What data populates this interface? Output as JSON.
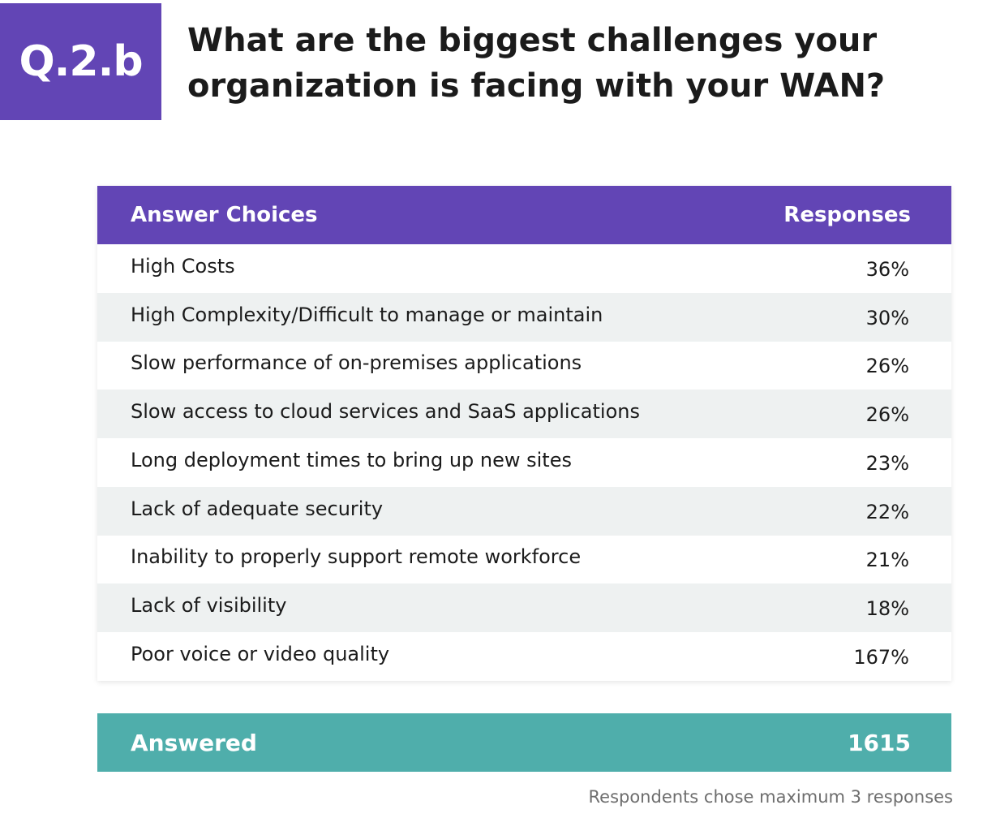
{
  "badge": "Q.2.b",
  "title": "What are the biggest challenges your organization is facing with your WAN?",
  "table": {
    "header": {
      "choice": "Answer Choices",
      "response": "Responses"
    },
    "rows": [
      {
        "choice": "High Costs",
        "response": "36%"
      },
      {
        "choice": "High Complexity/Difficult to manage or maintain",
        "response": "30%"
      },
      {
        "choice": "Slow performance of on-premises applications",
        "response": "26%"
      },
      {
        "choice": "Slow access to cloud services and SaaS applications",
        "response": "26%"
      },
      {
        "choice": "Long deployment times to bring up new sites",
        "response": "23%"
      },
      {
        "choice": "Lack of adequate security",
        "response": "22%"
      },
      {
        "choice": "Inability to properly support remote workforce",
        "response": "21%"
      },
      {
        "choice": "Lack of visibility",
        "response": "18%"
      },
      {
        "choice": "Poor voice or video quality",
        "response": "167%"
      }
    ]
  },
  "answered": {
    "label": "Answered",
    "value": "1615"
  },
  "footnote": "Respondents chose maximum 3 responses",
  "colors": {
    "brand": "#6245b5",
    "stripe": "#eef1f1",
    "teal": "#4faeab"
  }
}
